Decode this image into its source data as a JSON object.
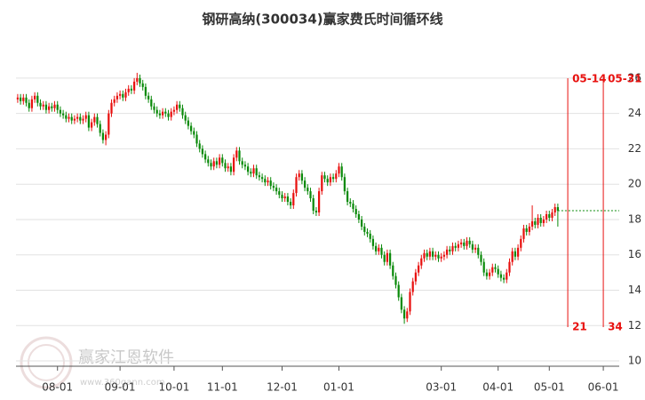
{
  "chart_data": {
    "type": "candlestick",
    "title": "钢研高纳(300034)赢家费氏时间循环线",
    "up_color": "#e8110f",
    "down_color": "#0a8a0a",
    "xlim": [
      -0.6,
      211.6
    ],
    "ylim": [
      9.7,
      27
    ],
    "yticks": [
      10,
      12,
      14,
      16,
      18,
      20,
      22,
      24,
      26
    ],
    "grid": true,
    "xticks": [
      {
        "value": 14,
        "label": "08-01"
      },
      {
        "value": 36,
        "label": "09-01"
      },
      {
        "value": 55,
        "label": "10-01"
      },
      {
        "value": 72,
        "label": "11-01"
      },
      {
        "value": 93,
        "label": "12-01"
      },
      {
        "value": 113,
        "label": "01-01"
      },
      {
        "value": 149,
        "label": "03-01"
      },
      {
        "value": 169,
        "label": "04-01"
      },
      {
        "value": 187,
        "label": "05-01"
      },
      {
        "value": 206,
        "label": "06-01"
      }
    ],
    "close_line": true,
    "cycle_lines": [
      {
        "label": "05-14",
        "x": 193.5,
        "count": 21
      },
      {
        "label": "05-31",
        "x": 206,
        "count": 34
      }
    ],
    "watermark": {
      "brand": "赢家江恩软件",
      "site": "www.360gann.com"
    },
    "ohlc": [
      [
        24.8,
        25.1,
        24.6,
        24.9
      ],
      [
        24.9,
        25.1,
        24.5,
        24.7
      ],
      [
        24.7,
        25.1,
        24.5,
        24.9
      ],
      [
        24.9,
        25.1,
        24.4,
        24.6
      ],
      [
        24.6,
        24.8,
        24.1,
        24.3
      ],
      [
        24.3,
        25.0,
        24.1,
        24.8
      ],
      [
        24.8,
        25.2,
        24.6,
        25.0
      ],
      [
        25.0,
        25.2,
        24.4,
        24.6
      ],
      [
        24.6,
        24.8,
        24.2,
        24.4
      ],
      [
        24.4,
        24.7,
        24.2,
        24.5
      ],
      [
        24.5,
        24.7,
        24.0,
        24.2
      ],
      [
        24.2,
        24.6,
        24.0,
        24.4
      ],
      [
        24.4,
        24.6,
        24.1,
        24.3
      ],
      [
        24.3,
        24.7,
        24.1,
        24.5
      ],
      [
        24.5,
        24.7,
        24.0,
        24.2
      ],
      [
        24.2,
        24.4,
        23.8,
        24.0
      ],
      [
        24.0,
        24.2,
        23.7,
        23.9
      ],
      [
        23.9,
        24.1,
        23.5,
        23.7
      ],
      [
        23.7,
        24.0,
        23.5,
        23.8
      ],
      [
        23.8,
        24.0,
        23.4,
        23.6
      ],
      [
        23.6,
        23.9,
        23.4,
        23.7
      ],
      [
        23.7,
        24.0,
        23.5,
        23.8
      ],
      [
        23.8,
        24.0,
        23.4,
        23.6
      ],
      [
        23.6,
        23.9,
        23.4,
        23.7
      ],
      [
        23.7,
        24.1,
        23.5,
        23.9
      ],
      [
        23.9,
        24.1,
        23.0,
        23.2
      ],
      [
        23.2,
        23.7,
        23.0,
        23.5
      ],
      [
        23.5,
        24.0,
        23.3,
        23.8
      ],
      [
        23.8,
        24.0,
        23.2,
        23.4
      ],
      [
        23.4,
        23.6,
        22.7,
        22.9
      ],
      [
        22.9,
        23.1,
        22.3,
        22.5
      ],
      [
        22.5,
        23.0,
        22.2,
        22.8
      ],
      [
        22.8,
        24.2,
        22.6,
        24.0
      ],
      [
        24.0,
        24.8,
        23.8,
        24.6
      ],
      [
        24.6,
        25.0,
        24.4,
        24.8
      ],
      [
        24.8,
        25.2,
        24.6,
        25.0
      ],
      [
        25.0,
        25.3,
        24.8,
        25.1
      ],
      [
        25.1,
        25.3,
        24.7,
        24.9
      ],
      [
        24.9,
        25.4,
        24.7,
        25.2
      ],
      [
        25.2,
        25.6,
        25.0,
        25.4
      ],
      [
        25.4,
        25.6,
        25.1,
        25.3
      ],
      [
        25.3,
        26.0,
        25.1,
        25.8
      ],
      [
        25.8,
        26.3,
        25.6,
        26.0
      ],
      [
        26.0,
        26.2,
        25.5,
        25.7
      ],
      [
        25.7,
        25.9,
        25.3,
        25.5
      ],
      [
        25.5,
        25.7,
        24.8,
        25.0
      ],
      [
        25.0,
        25.2,
        24.6,
        24.8
      ],
      [
        24.8,
        25.0,
        24.2,
        24.4
      ],
      [
        24.4,
        24.6,
        24.0,
        24.2
      ],
      [
        24.2,
        24.4,
        23.8,
        24.0
      ],
      [
        24.0,
        24.2,
        23.7,
        23.9
      ],
      [
        23.9,
        24.3,
        23.7,
        24.1
      ],
      [
        24.1,
        24.3,
        23.8,
        24.0
      ],
      [
        24.0,
        24.2,
        23.6,
        23.8
      ],
      [
        23.8,
        24.3,
        23.6,
        24.1
      ],
      [
        24.1,
        24.4,
        23.9,
        24.2
      ],
      [
        24.2,
        24.7,
        24.0,
        24.5
      ],
      [
        24.5,
        24.7,
        24.1,
        24.3
      ],
      [
        24.3,
        24.5,
        23.7,
        23.9
      ],
      [
        23.9,
        24.1,
        23.4,
        23.6
      ],
      [
        23.6,
        23.8,
        23.1,
        23.3
      ],
      [
        23.3,
        23.5,
        22.8,
        23.0
      ],
      [
        23.0,
        23.2,
        22.6,
        22.8
      ],
      [
        22.8,
        23.0,
        22.1,
        22.3
      ],
      [
        22.3,
        22.5,
        21.8,
        22.0
      ],
      [
        22.0,
        22.2,
        21.5,
        21.7
      ],
      [
        21.7,
        21.9,
        21.2,
        21.4
      ],
      [
        21.4,
        21.6,
        21.0,
        21.2
      ],
      [
        21.2,
        21.4,
        20.8,
        21.0
      ],
      [
        21.0,
        21.5,
        20.8,
        21.3
      ],
      [
        21.3,
        21.5,
        20.9,
        21.1
      ],
      [
        21.1,
        21.7,
        20.9,
        21.5
      ],
      [
        21.5,
        21.7,
        21.0,
        21.2
      ],
      [
        21.2,
        21.4,
        20.7,
        20.9
      ],
      [
        20.9,
        21.2,
        20.7,
        21.0
      ],
      [
        21.0,
        21.2,
        20.5,
        20.7
      ],
      [
        20.7,
        21.7,
        20.5,
        21.5
      ],
      [
        21.5,
        22.1,
        21.3,
        21.9
      ],
      [
        21.9,
        22.1,
        21.1,
        21.3
      ],
      [
        21.3,
        21.5,
        20.9,
        21.1
      ],
      [
        21.1,
        21.3,
        20.8,
        21.0
      ],
      [
        21.0,
        21.2,
        20.5,
        20.7
      ],
      [
        20.7,
        20.9,
        20.4,
        20.6
      ],
      [
        20.6,
        21.1,
        20.4,
        20.9
      ],
      [
        20.9,
        21.1,
        20.3,
        20.5
      ],
      [
        20.5,
        20.7,
        20.2,
        20.4
      ],
      [
        20.4,
        20.6,
        20.1,
        20.3
      ],
      [
        20.3,
        20.5,
        19.9,
        20.1
      ],
      [
        20.1,
        20.4,
        19.9,
        20.2
      ],
      [
        20.2,
        20.4,
        19.7,
        19.9
      ],
      [
        19.9,
        20.1,
        19.6,
        19.8
      ],
      [
        19.8,
        20.0,
        19.4,
        19.6
      ],
      [
        19.6,
        19.8,
        19.2,
        19.4
      ],
      [
        19.4,
        19.6,
        19.0,
        19.2
      ],
      [
        19.2,
        19.5,
        19.0,
        19.3
      ],
      [
        19.3,
        19.5,
        18.8,
        19.0
      ],
      [
        19.0,
        19.2,
        18.6,
        18.8
      ],
      [
        18.8,
        19.7,
        18.6,
        19.5
      ],
      [
        19.5,
        20.6,
        19.3,
        20.4
      ],
      [
        20.4,
        20.8,
        20.2,
        20.6
      ],
      [
        20.6,
        20.8,
        20.0,
        20.2
      ],
      [
        20.2,
        20.4,
        19.6,
        19.8
      ],
      [
        19.8,
        20.0,
        19.4,
        19.6
      ],
      [
        19.6,
        19.8,
        19.0,
        19.2
      ],
      [
        19.2,
        19.4,
        18.3,
        18.5
      ],
      [
        18.5,
        18.7,
        18.2,
        18.4
      ],
      [
        18.4,
        19.8,
        18.2,
        19.6
      ],
      [
        19.6,
        20.7,
        19.4,
        20.5
      ],
      [
        20.5,
        20.7,
        20.1,
        20.3
      ],
      [
        20.3,
        20.5,
        19.9,
        20.1
      ],
      [
        20.1,
        20.6,
        19.9,
        20.4
      ],
      [
        20.4,
        20.6,
        20.1,
        20.3
      ],
      [
        20.3,
        20.8,
        20.1,
        20.6
      ],
      [
        20.6,
        21.2,
        20.4,
        21.0
      ],
      [
        21.0,
        21.2,
        20.2,
        20.4
      ],
      [
        20.4,
        20.6,
        19.4,
        19.6
      ],
      [
        19.6,
        19.8,
        18.8,
        19.0
      ],
      [
        19.0,
        19.2,
        18.7,
        18.9
      ],
      [
        18.9,
        19.1,
        18.4,
        18.6
      ],
      [
        18.6,
        18.8,
        18.1,
        18.3
      ],
      [
        18.3,
        18.5,
        17.8,
        18.0
      ],
      [
        18.0,
        18.2,
        17.4,
        17.6
      ],
      [
        17.6,
        17.8,
        17.1,
        17.3
      ],
      [
        17.3,
        17.5,
        17.0,
        17.2
      ],
      [
        17.2,
        17.4,
        16.7,
        16.9
      ],
      [
        16.9,
        17.1,
        16.3,
        16.5
      ],
      [
        16.5,
        16.7,
        16.0,
        16.2
      ],
      [
        16.2,
        16.6,
        16.0,
        16.4
      ],
      [
        16.4,
        16.6,
        15.8,
        16.0
      ],
      [
        16.0,
        16.2,
        15.4,
        15.6
      ],
      [
        15.6,
        16.3,
        15.4,
        16.1
      ],
      [
        16.1,
        16.3,
        15.2,
        15.4
      ],
      [
        15.4,
        15.6,
        14.6,
        14.8
      ],
      [
        14.8,
        15.0,
        14.1,
        14.3
      ],
      [
        14.3,
        14.5,
        13.4,
        13.6
      ],
      [
        13.6,
        13.8,
        12.7,
        12.9
      ],
      [
        12.9,
        13.1,
        12.1,
        12.4
      ],
      [
        12.4,
        13.0,
        12.2,
        12.8
      ],
      [
        12.8,
        14.1,
        12.6,
        13.9
      ],
      [
        13.9,
        14.7,
        13.7,
        14.5
      ],
      [
        14.5,
        15.2,
        14.3,
        15.0
      ],
      [
        15.0,
        15.6,
        14.8,
        15.4
      ],
      [
        15.4,
        16.0,
        15.2,
        15.8
      ],
      [
        15.8,
        16.3,
        15.6,
        16.1
      ],
      [
        16.1,
        16.3,
        15.7,
        15.9
      ],
      [
        15.9,
        16.4,
        15.7,
        16.2
      ],
      [
        16.2,
        16.4,
        15.7,
        15.9
      ],
      [
        15.9,
        16.2,
        15.7,
        16.0
      ],
      [
        16.0,
        16.2,
        15.6,
        15.8
      ],
      [
        15.8,
        16.1,
        15.6,
        15.9
      ],
      [
        15.9,
        16.2,
        15.7,
        16.0
      ],
      [
        16.0,
        16.5,
        15.8,
        16.3
      ],
      [
        16.3,
        16.5,
        16.0,
        16.2
      ],
      [
        16.2,
        16.7,
        16.0,
        16.5
      ],
      [
        16.5,
        16.7,
        16.2,
        16.4
      ],
      [
        16.4,
        16.8,
        16.2,
        16.6
      ],
      [
        16.6,
        16.9,
        16.4,
        16.7
      ],
      [
        16.7,
        16.9,
        16.3,
        16.5
      ],
      [
        16.5,
        17.0,
        16.3,
        16.8
      ],
      [
        16.8,
        17.0,
        16.4,
        16.6
      ],
      [
        16.6,
        16.8,
        16.1,
        16.3
      ],
      [
        16.3,
        16.6,
        16.1,
        16.4
      ],
      [
        16.4,
        16.6,
        15.8,
        16.0
      ],
      [
        16.0,
        16.2,
        15.4,
        15.6
      ],
      [
        15.6,
        15.8,
        14.8,
        15.0
      ],
      [
        15.0,
        15.2,
        14.6,
        14.8
      ],
      [
        14.8,
        15.2,
        14.6,
        15.0
      ],
      [
        15.0,
        15.5,
        14.8,
        15.3
      ],
      [
        15.3,
        15.5,
        15.0,
        15.2
      ],
      [
        15.2,
        15.4,
        14.7,
        14.9
      ],
      [
        14.9,
        15.1,
        14.5,
        14.7
      ],
      [
        14.7,
        14.9,
        14.4,
        14.6
      ],
      [
        14.6,
        15.2,
        14.4,
        15.0
      ],
      [
        15.0,
        15.8,
        14.8,
        15.6
      ],
      [
        15.6,
        16.4,
        15.4,
        16.2
      ],
      [
        16.2,
        16.4,
        15.7,
        15.9
      ],
      [
        15.9,
        16.6,
        15.7,
        16.4
      ],
      [
        16.4,
        17.1,
        16.2,
        16.9
      ],
      [
        16.9,
        17.7,
        16.7,
        17.5
      ],
      [
        17.5,
        17.7,
        17.1,
        17.3
      ],
      [
        17.3,
        17.8,
        17.1,
        17.6
      ],
      [
        17.6,
        18.8,
        17.4,
        17.9
      ],
      [
        17.9,
        18.1,
        17.5,
        17.7
      ],
      [
        17.7,
        18.3,
        17.5,
        18.1
      ],
      [
        18.1,
        18.3,
        17.6,
        17.8
      ],
      [
        17.8,
        18.2,
        17.6,
        18.0
      ],
      [
        18.0,
        18.5,
        17.8,
        18.3
      ],
      [
        18.3,
        18.5,
        17.9,
        18.1
      ],
      [
        18.1,
        18.6,
        17.9,
        18.4
      ],
      [
        18.4,
        18.9,
        18.2,
        18.7
      ],
      [
        18.7,
        18.9,
        17.6,
        18.5
      ]
    ]
  }
}
